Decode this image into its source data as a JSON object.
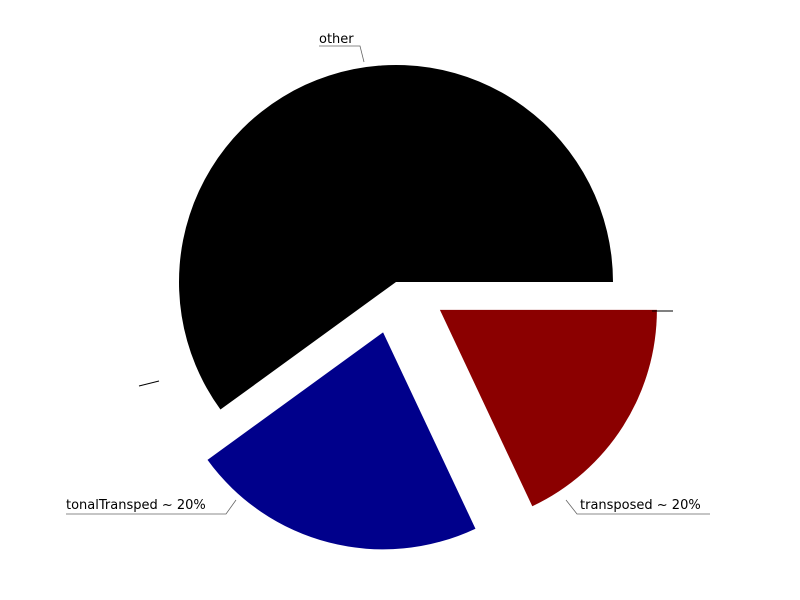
{
  "chart_data": {
    "type": "pie",
    "title": "",
    "slices": [
      {
        "label": "other",
        "value": 60,
        "color": "#000000",
        "exploded": false
      },
      {
        "label": "transposed ~ 20%",
        "value": 22,
        "color": "#00008b",
        "exploded": true
      },
      {
        "label": "tonalTransped ~ 20%",
        "value": 18,
        "color": "#8b0000",
        "exploded": true
      }
    ],
    "start_angle_deg": 0,
    "direction": "counterclockwise",
    "legend": "none"
  }
}
